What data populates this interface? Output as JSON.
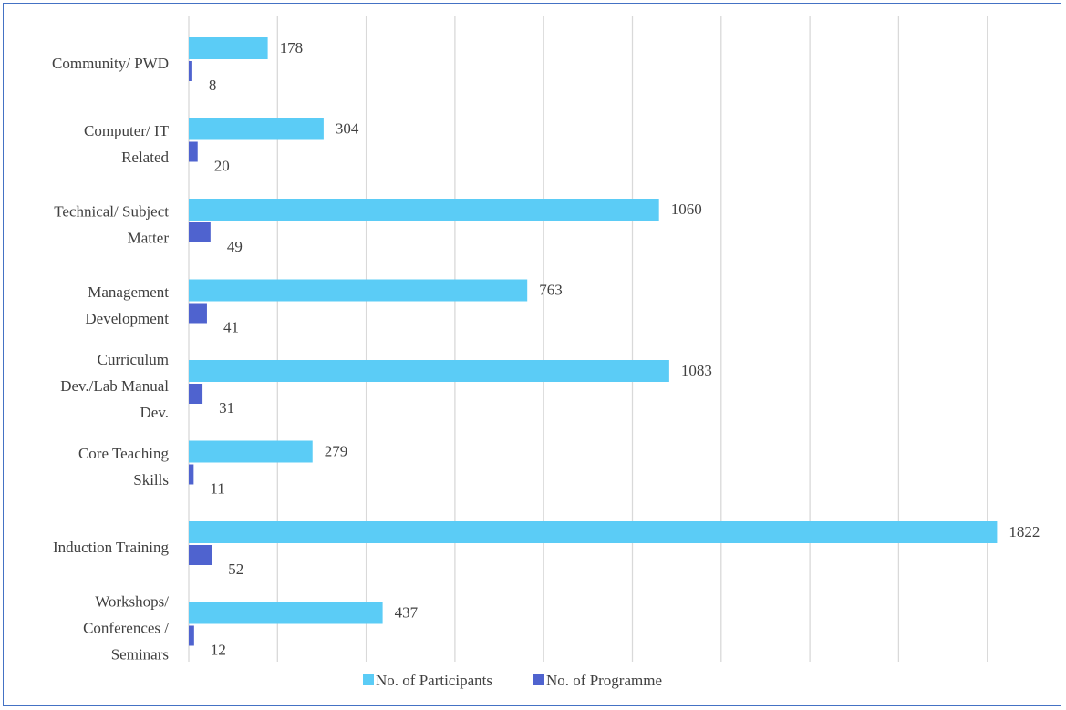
{
  "chart_data": {
    "type": "bar",
    "orientation": "horizontal",
    "categories": [
      "Community/ PWD",
      "Computer/ IT Related",
      "Technical/ Subject Matter",
      "Management Development",
      "Curriculum Dev./Lab Manual Dev.",
      "Core Teaching Skills",
      "Induction Training",
      "Workshops/ Conferences / Seminars"
    ],
    "category_lines": [
      [
        "Community/ PWD"
      ],
      [
        "Computer/ IT",
        "Related"
      ],
      [
        "Technical/ Subject",
        "Matter"
      ],
      [
        "Management",
        "Development"
      ],
      [
        "Curriculum",
        "Dev./Lab Manual",
        "Dev."
      ],
      [
        "Core Teaching",
        "Skills"
      ],
      [
        "Induction Training"
      ],
      [
        "Workshops/",
        "Conferences /",
        "Seminars"
      ]
    ],
    "series": [
      {
        "name": "No. of Participants",
        "color": "#5bccf6",
        "values": [
          178,
          304,
          1060,
          763,
          1083,
          279,
          1822,
          437
        ]
      },
      {
        "name": "No. of Programme",
        "color": "#4f63cf",
        "values": [
          8,
          20,
          49,
          41,
          31,
          11,
          52,
          12
        ]
      }
    ],
    "xlim": [
      0,
      1800
    ],
    "gridlines": true,
    "legend": "bottom",
    "title": "",
    "xlabel": "",
    "ylabel": ""
  }
}
